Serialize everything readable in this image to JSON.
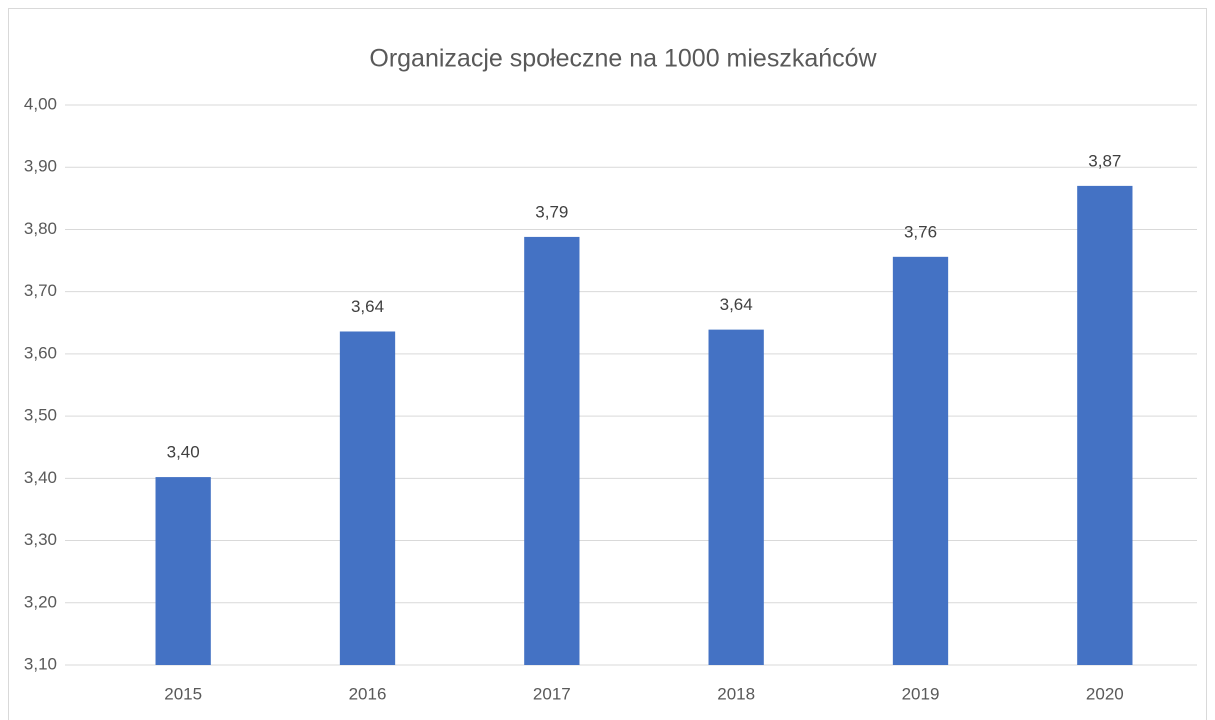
{
  "chart_data": {
    "type": "bar",
    "title": "Organizacje społeczne na 1000 mieszkańców",
    "categories": [
      "2015",
      "2016",
      "2017",
      "2018",
      "2019",
      "2020"
    ],
    "values": [
      3.402,
      3.636,
      3.788,
      3.639,
      3.756,
      3.87
    ],
    "value_labels": [
      "3,40",
      "3,64",
      "3,79",
      "3,64",
      "3,76",
      "3,87"
    ],
    "color": "#4472c4",
    "ylim": [
      3.1,
      4.0
    ],
    "yticks": [
      {
        "value": 3.1,
        "label": "3,10"
      },
      {
        "value": 3.2,
        "label": "3,20"
      },
      {
        "value": 3.3,
        "label": "3,30"
      },
      {
        "value": 3.4,
        "label": "3,40"
      },
      {
        "value": 3.5,
        "label": "3,50"
      },
      {
        "value": 3.6,
        "label": "3,60"
      },
      {
        "value": 3.7,
        "label": "3,70"
      },
      {
        "value": 3.8,
        "label": "3,80"
      },
      {
        "value": 3.9,
        "label": "3,90"
      },
      {
        "value": 4.0,
        "label": "4,00"
      }
    ],
    "grid": true
  }
}
